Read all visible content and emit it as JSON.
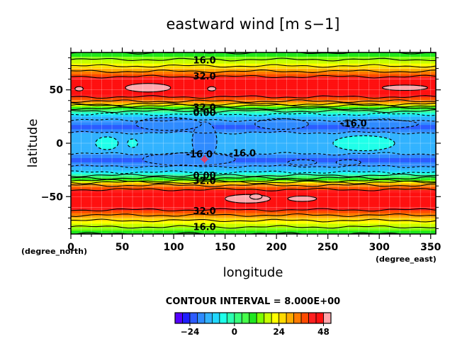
{
  "chart_data": {
    "type": "heatmap",
    "title": "eastward wind [m s−1]",
    "xlabel": "longitude",
    "ylabel": "latitude",
    "x_unit_label": "(degree_east)",
    "y_unit_label": "(degree_north)",
    "xlim": [
      0,
      355
    ],
    "ylim": [
      -85,
      85
    ],
    "x_ticks": [
      0,
      50,
      100,
      150,
      200,
      250,
      300,
      350
    ],
    "y_ticks": [
      -50,
      0,
      50
    ],
    "y_tick_labels": [
      "−50",
      "0",
      "50"
    ],
    "grid": true,
    "contour_interval_text": "CONTOUR INTERVAL = 8.000E+00",
    "contour_interval": 8,
    "zonal_profile": {
      "latitude": [
        -85,
        -80,
        -75,
        -70,
        -65,
        -60,
        -55,
        -50,
        -45,
        -40,
        -37,
        -35,
        -32,
        -28,
        -25,
        -20,
        -15,
        -10,
        -5,
        0,
        5,
        10,
        15,
        20,
        25,
        28,
        32,
        35,
        37,
        40,
        45,
        50,
        55,
        60,
        65,
        70,
        75,
        80,
        85
      ],
      "u": [
        8,
        14,
        20,
        28,
        36,
        44,
        47,
        47,
        43,
        34,
        26,
        16,
        6,
        -6,
        -12,
        -18,
        -22,
        -16,
        -14,
        -13,
        -14,
        -16,
        -22,
        -18,
        -12,
        -6,
        6,
        16,
        26,
        34,
        43,
        47,
        47,
        44,
        36,
        28,
        20,
        14,
        8
      ]
    },
    "contour_labels": [
      {
        "text": "16.0",
        "lon": 130,
        "lat": 78
      },
      {
        "text": "32.0",
        "lon": 130,
        "lat": 63
      },
      {
        "text": "32.0",
        "lon": 130,
        "lat": 34
      },
      {
        "text": "0.00",
        "lon": 130,
        "lat": 29
      },
      {
        "text": "-16.0",
        "lon": 275,
        "lat": 19
      },
      {
        "text": "-16.0",
        "lon": 125,
        "lat": -10
      },
      {
        "text": "-16.0",
        "lon": 167,
        "lat": -9
      },
      {
        "text": "0.00",
        "lon": 130,
        "lat": -30
      },
      {
        "text": "32.0",
        "lon": 130,
        "lat": -35
      },
      {
        "text": "32.0",
        "lon": 130,
        "lat": -63
      },
      {
        "text": "16.0",
        "lon": 130,
        "lat": -78
      }
    ],
    "colorbar": {
      "levels": [
        -32,
        -28,
        -24,
        -20,
        -16,
        -12,
        -8,
        -4,
        0,
        4,
        8,
        12,
        16,
        20,
        24,
        28,
        32,
        36,
        40,
        44,
        48,
        52
      ],
      "colors": [
        "#5500ff",
        "#1f1fff",
        "#2d5cff",
        "#2f8bff",
        "#32b3ff",
        "#22d7ff",
        "#1fffe9",
        "#2bffb0",
        "#37ff7a",
        "#46ff4a",
        "#1fe61f",
        "#7cff00",
        "#c8ff00",
        "#ffff00",
        "#ffd900",
        "#ffaa00",
        "#ff7a00",
        "#ff4a00",
        "#ff1f1f",
        "#ff1010",
        "#ffa6ac"
      ],
      "tick_values": [
        -24,
        0,
        24,
        48
      ],
      "tick_labels": [
        "−24",
        "0",
        "24",
        "48"
      ]
    },
    "marker": {
      "lon": 130,
      "lat": -15,
      "color": "#e0406a"
    }
  }
}
